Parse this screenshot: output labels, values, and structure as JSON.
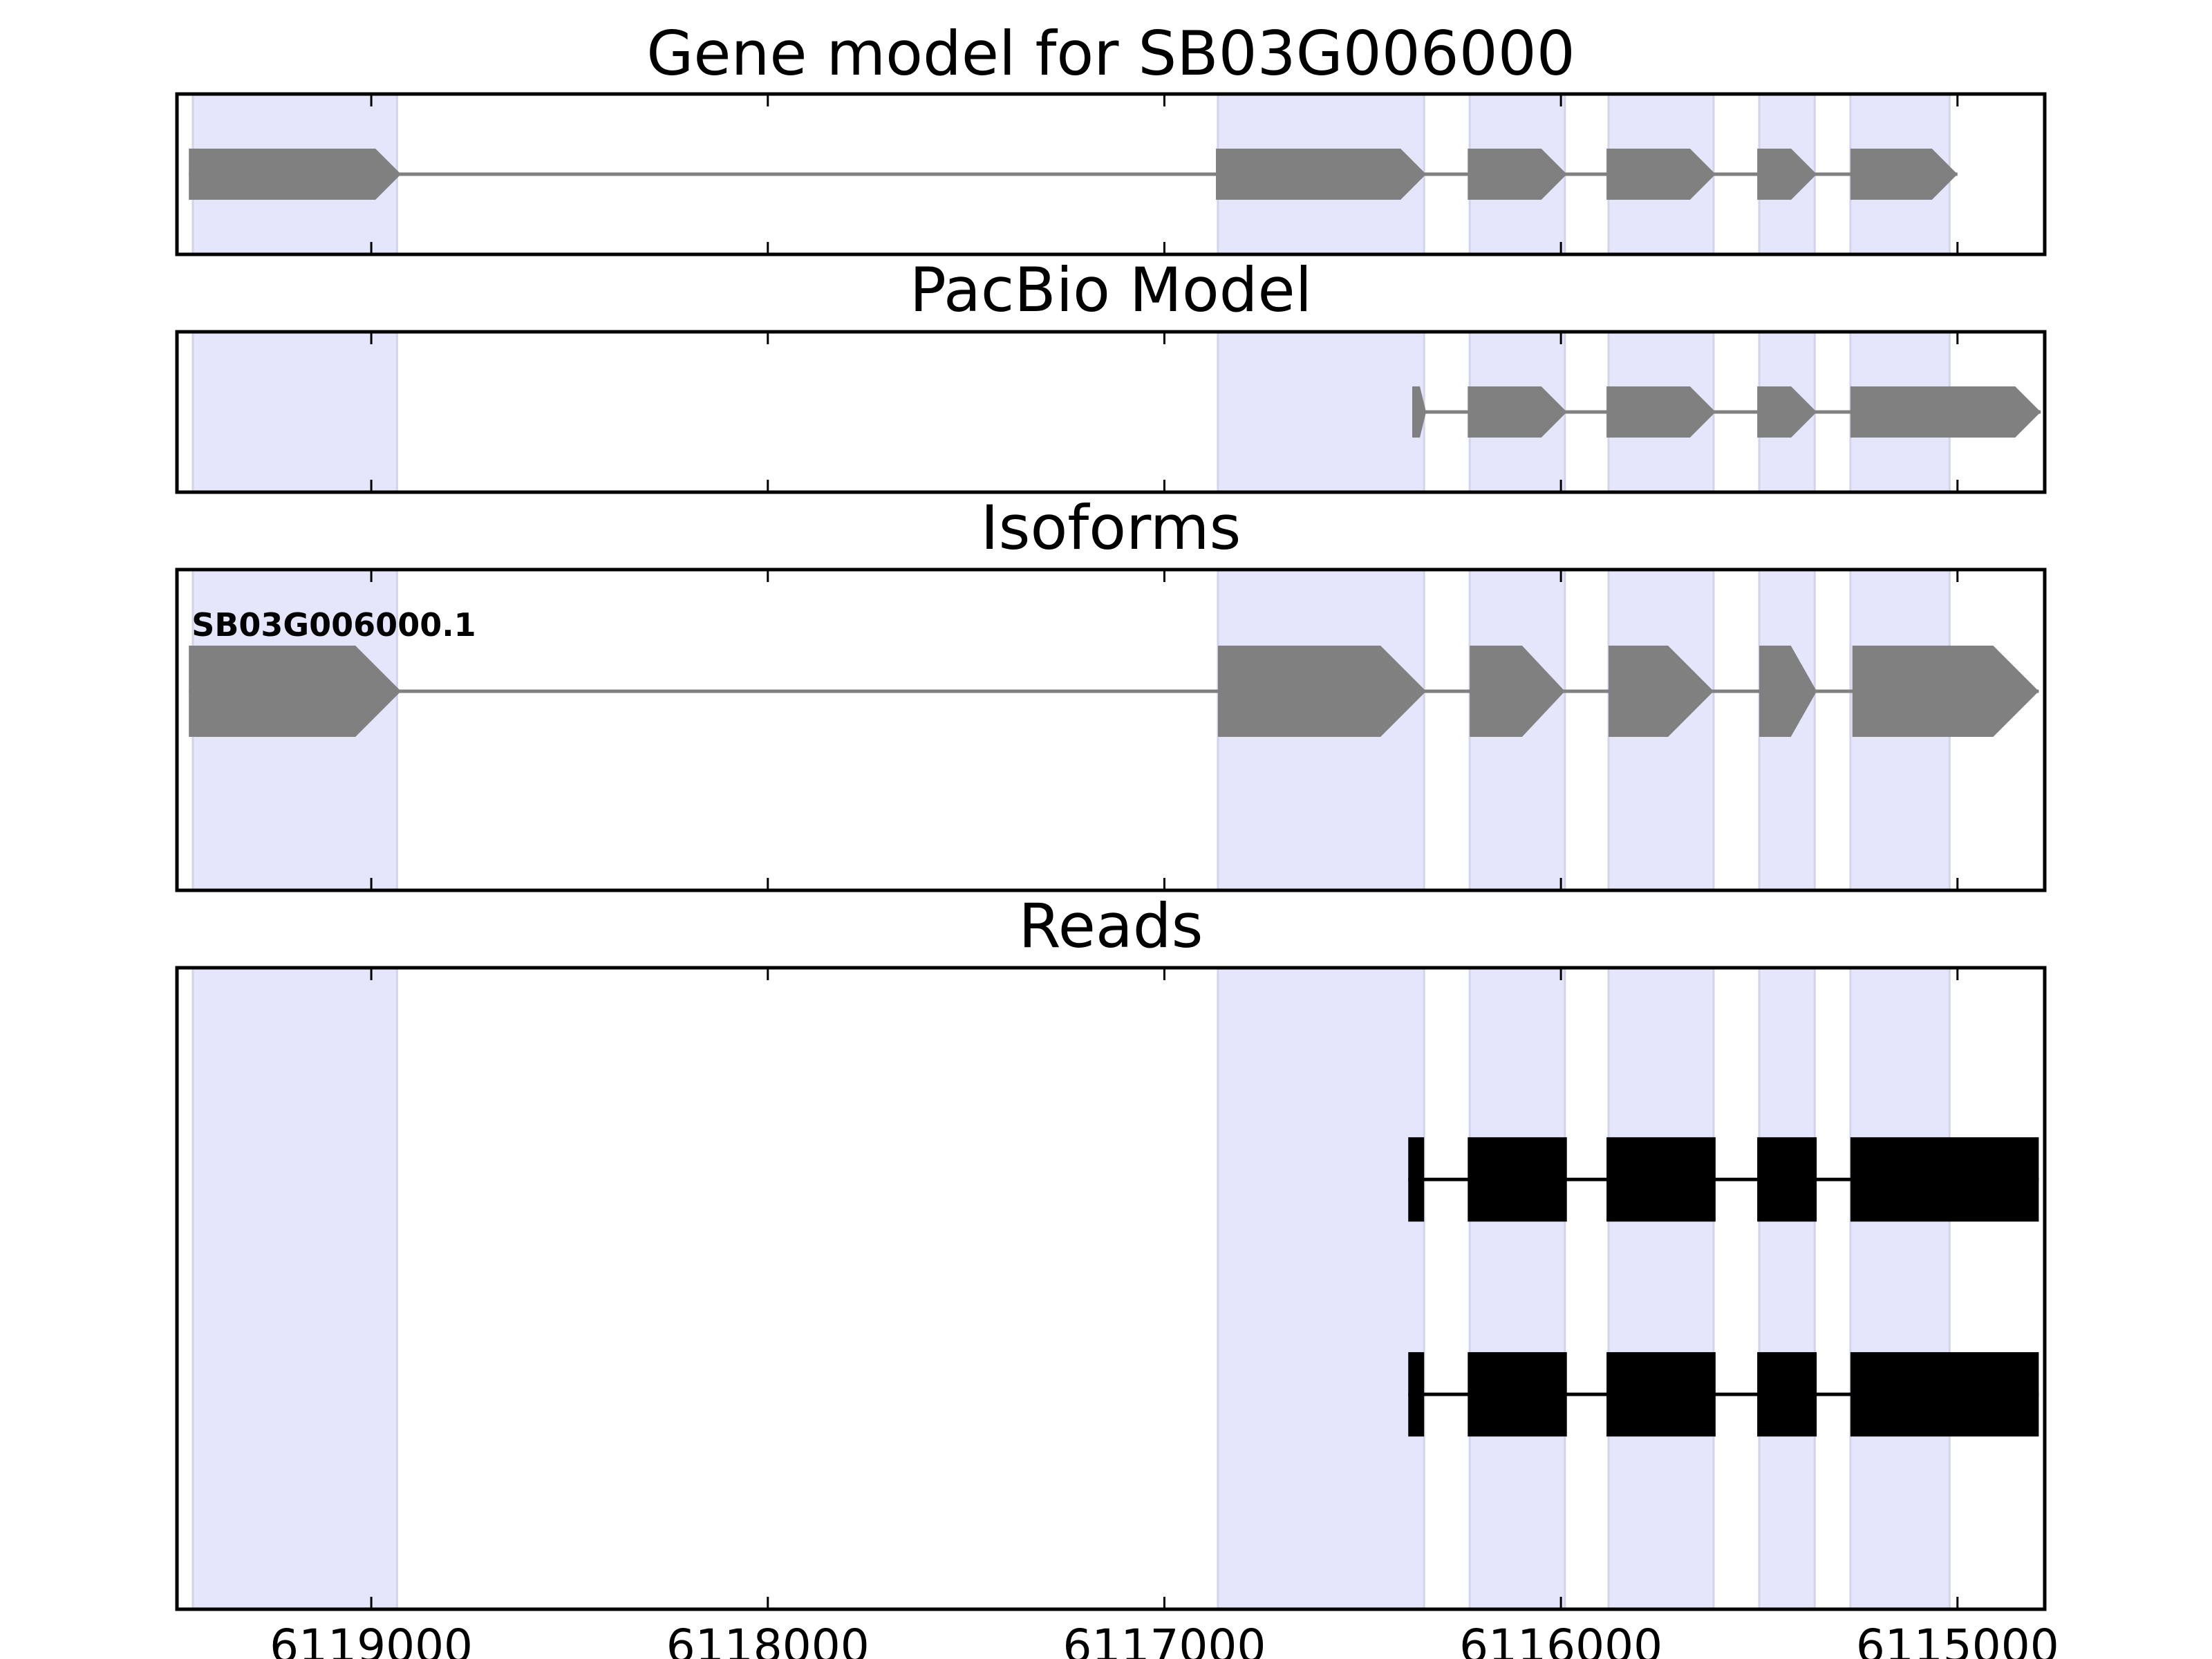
{
  "chart_data": {
    "type": "gene-track",
    "x_axis": {
      "xlim": [
        6119490,
        6114780
      ],
      "ticks": [
        6119000,
        6118000,
        6117000,
        6116000,
        6115000
      ],
      "tick_labels": [
        "6119000",
        "6118000",
        "6117000",
        "6116000",
        "6115000"
      ],
      "direction": "decreasing to the right"
    },
    "colors": {
      "feature": "#808080",
      "read": "#000000",
      "shade": "#e5e5fb",
      "shade_edge": "#d3d3ec"
    },
    "highlight_regions": [
      [
        6119450,
        6118935
      ],
      [
        6116865,
        6116345
      ],
      [
        6116230,
        6115990
      ],
      [
        6115880,
        6115615
      ],
      [
        6115500,
        6115360
      ],
      [
        6115270,
        6115020
      ]
    ],
    "panels": [
      {
        "title": "Gene model for SB03G006000",
        "kind": "model",
        "features": [
          {
            "exons": [
              [
                6119460,
                6118925
              ],
              [
                6116870,
                6116340
              ],
              [
                6116235,
                6115985
              ],
              [
                6115885,
                6115610
              ],
              [
                6115505,
                6115355
              ],
              [
                6115270,
                6115000
              ]
            ]
          }
        ]
      },
      {
        "title": "PacBio Model",
        "kind": "model",
        "features": [
          {
            "exons": [
              [
                6116375,
                6116340
              ],
              [
                6116235,
                6115985
              ],
              [
                6115885,
                6115610
              ],
              [
                6115505,
                6115355
              ],
              [
                6115270,
                6114790
              ]
            ]
          }
        ]
      },
      {
        "title": "Isoforms",
        "kind": "isoform",
        "features": [
          {
            "label": "SB03G006000.1",
            "exons": [
              [
                6119460,
                6118925
              ],
              [
                6116865,
                6116340
              ],
              [
                6116230,
                6115990
              ],
              [
                6115880,
                6115615
              ],
              [
                6115500,
                6115355
              ],
              [
                6115265,
                6114795
              ]
            ]
          }
        ]
      },
      {
        "title": "Reads",
        "kind": "reads",
        "features": [
          {
            "exons": [
              [
                6116385,
                6116345
              ],
              [
                6116235,
                6115985
              ],
              [
                6115885,
                6115610
              ],
              [
                6115505,
                6115355
              ],
              [
                6115270,
                6114795
              ]
            ]
          },
          {
            "exons": [
              [
                6116385,
                6116345
              ],
              [
                6116235,
                6115985
              ],
              [
                6115885,
                6115610
              ],
              [
                6115505,
                6115355
              ],
              [
                6115270,
                6114795
              ]
            ]
          }
        ]
      }
    ]
  }
}
